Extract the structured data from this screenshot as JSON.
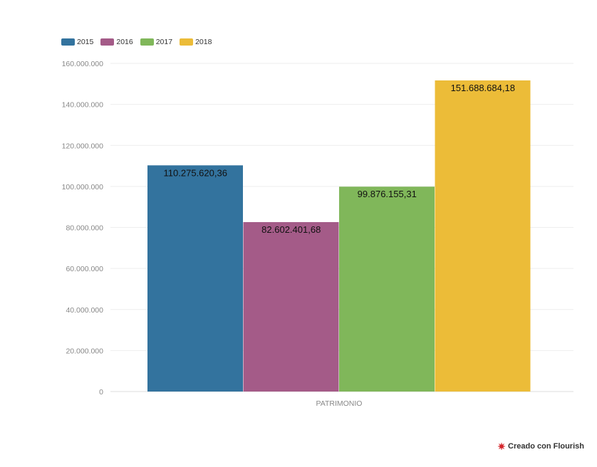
{
  "chart_data": {
    "type": "bar",
    "categories": [
      "PATRIMONIO"
    ],
    "series": [
      {
        "name": "2015",
        "values": [
          110275620.36
        ],
        "label": "110.275.620,36",
        "color": "#33739e"
      },
      {
        "name": "2016",
        "values": [
          82602401.68
        ],
        "label": "82.602.401,68",
        "color": "#a45b88"
      },
      {
        "name": "2017",
        "values": [
          99876155.31
        ],
        "label": "99.876.155,31",
        "color": "#80b75a"
      },
      {
        "name": "2018",
        "values": [
          151688684.18
        ],
        "label": "151.688.684,18",
        "color": "#ecbc38"
      }
    ],
    "title": "",
    "xlabel": "",
    "ylabel": "",
    "ylim": [
      0,
      160000000
    ],
    "yticks": [
      {
        "value": 0,
        "label": "0"
      },
      {
        "value": 20000000,
        "label": "20.000.000"
      },
      {
        "value": 40000000,
        "label": "40.000.000"
      },
      {
        "value": 60000000,
        "label": "60.000.000"
      },
      {
        "value": 80000000,
        "label": "80.000.000"
      },
      {
        "value": 100000000,
        "label": "100.000.000"
      },
      {
        "value": 120000000,
        "label": "120.000.000"
      },
      {
        "value": 140000000,
        "label": "140.000.000"
      },
      {
        "value": 160000000,
        "label": "160.000.000"
      }
    ],
    "grid": true,
    "legend_position": "top-left"
  },
  "credit": {
    "text": "Creado con Flourish",
    "icon": "flourish-logo-icon",
    "icon_color": "#d4262b"
  }
}
